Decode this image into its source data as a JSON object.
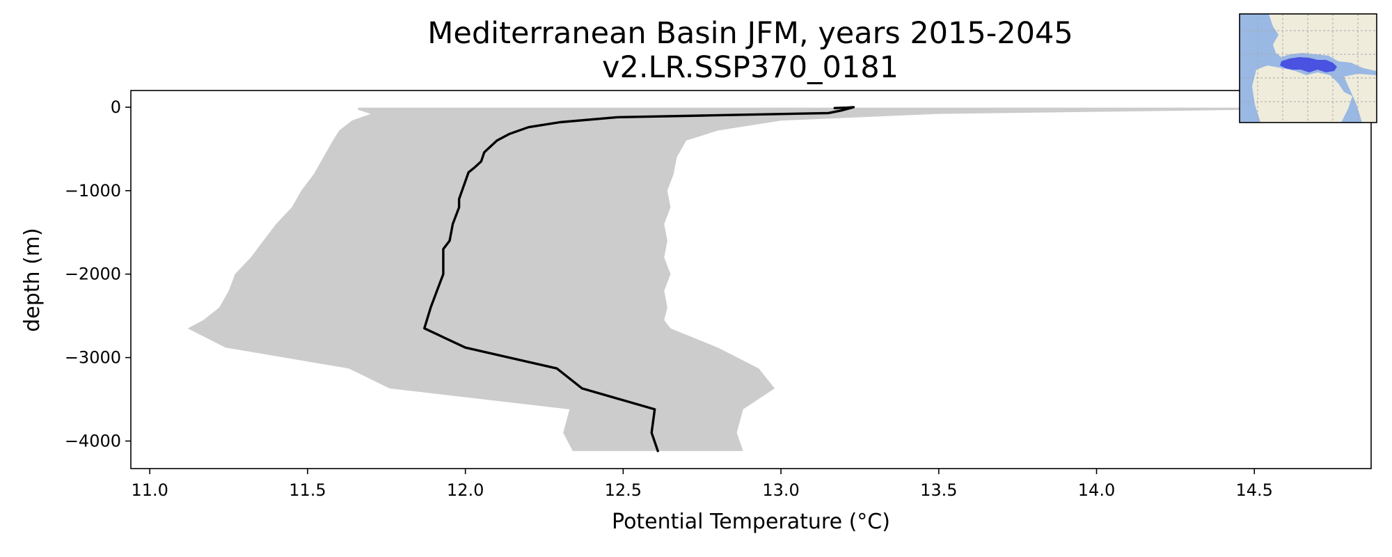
{
  "chart_data": {
    "type": "line",
    "title": "Mediterranean Basin JFM, years 2015-2045",
    "subtitle": "v2.LR.SSP370_0181",
    "xlabel": "Potential Temperature (°C)",
    "ylabel": "depth (m)",
    "xlim": [
      10.94,
      14.87
    ],
    "ylim": [
      -4330,
      200
    ],
    "xticks": [
      11.0,
      11.5,
      12.0,
      12.5,
      13.0,
      13.5,
      14.0,
      14.5
    ],
    "xtick_labels": [
      "11.0",
      "11.5",
      "12.0",
      "12.5",
      "13.0",
      "13.5",
      "14.0",
      "14.5"
    ],
    "yticks": [
      0,
      -1000,
      -2000,
      -3000,
      -4000
    ],
    "ytick_labels": [
      "0",
      "−1000",
      "−2000",
      "−3000",
      "−4000"
    ],
    "grid": false,
    "series": [
      {
        "role": "mean",
        "color": "#000000",
        "x": [
          13.17,
          13.21,
          13.23,
          13.19,
          13.15,
          12.75,
          12.48,
          12.3,
          12.2,
          12.14,
          12.1,
          12.08,
          12.06,
          12.05,
          12.03,
          12.01,
          11.98,
          11.98,
          11.96,
          11.95,
          11.93,
          11.93,
          11.93,
          11.91,
          11.89,
          11.87,
          12.0,
          12.29,
          12.37,
          12.6,
          12.59,
          12.61
        ],
        "y": [
          -10,
          -5,
          0,
          -40,
          -70,
          -100,
          -120,
          -180,
          -240,
          -320,
          -400,
          -470,
          -540,
          -650,
          -720,
          -780,
          -1100,
          -1200,
          -1400,
          -1600,
          -1700,
          -1800,
          -2000,
          -2200,
          -2400,
          -2650,
          -2880,
          -3130,
          -3370,
          -3620,
          -3900,
          -4120
        ]
      }
    ],
    "envelope": {
      "color": "#cccccc",
      "x_min": [
        11.66,
        11.66,
        11.7,
        11.64,
        11.6,
        11.58,
        11.55,
        11.52,
        11.48,
        11.45,
        11.4,
        11.36,
        11.32,
        11.27,
        11.25,
        11.22,
        11.17,
        11.12,
        11.24,
        11.63,
        11.76,
        12.33,
        12.31,
        12.34
      ],
      "x_max": [
        14.87,
        14.5,
        13.5,
        13.0,
        12.8,
        12.7,
        12.67,
        12.66,
        12.64,
        12.65,
        12.63,
        12.64,
        12.63,
        12.65,
        12.63,
        12.64,
        12.63,
        12.65,
        12.8,
        12.93,
        12.98,
        12.88,
        12.86,
        12.88
      ],
      "y": [
        -5,
        -30,
        -80,
        -160,
        -280,
        -400,
        -600,
        -800,
        -1000,
        -1200,
        -1400,
        -1600,
        -1800,
        -2000,
        -2200,
        -2400,
        -2550,
        -2650,
        -2880,
        -3130,
        -3370,
        -3620,
        -3900,
        -4120
      ]
    }
  },
  "inset_map": {
    "ocean_color": "#9ab8e4",
    "land_color": "#efecdc",
    "region_color": "#3b3fe0",
    "grid_color": "#a8a8a8"
  }
}
